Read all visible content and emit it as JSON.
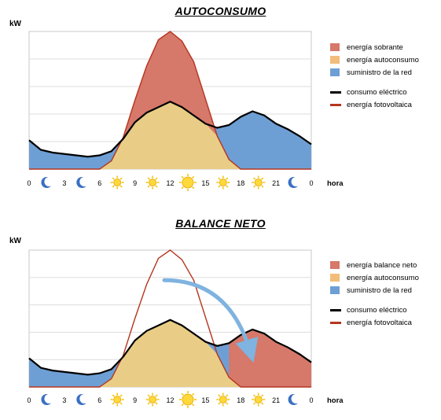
{
  "chart_data": [
    {
      "type": "area",
      "title": "AUTOCONSUMO",
      "ylabel": "kW",
      "xlabel": "hora",
      "x_ticks": [
        "0",
        "3",
        "6",
        "9",
        "12",
        "15",
        "18",
        "21",
        "0"
      ],
      "tick_icons": [
        "moon-icon",
        "moon-icon",
        "sun-icon",
        "sun-icon",
        "sun-icon",
        "sun-icon",
        "sun-icon",
        "moon-icon"
      ],
      "x": [
        0,
        1,
        2,
        3,
        4,
        5,
        6,
        7,
        8,
        9,
        10,
        11,
        12,
        13,
        14,
        15,
        16,
        17,
        18,
        19,
        20,
        21,
        22,
        23,
        24
      ],
      "ylim": [
        0,
        10
      ],
      "grid": true,
      "series": [
        {
          "name": "consumo eléctrico",
          "style": "line",
          "color": "#000000",
          "values": [
            2.1,
            1.4,
            1.2,
            1.1,
            1.0,
            0.9,
            1.0,
            1.3,
            2.2,
            3.4,
            4.1,
            4.5,
            4.9,
            4.5,
            3.9,
            3.3,
            3.0,
            3.2,
            3.8,
            4.2,
            3.9,
            3.3,
            2.9,
            2.4,
            1.8
          ]
        },
        {
          "name": "energía fotovoltaica",
          "style": "line",
          "color": "#b5351f",
          "values": [
            0,
            0,
            0,
            0,
            0,
            0,
            0,
            0.6,
            2.3,
            5.0,
            7.5,
            9.4,
            10.0,
            9.3,
            7.8,
            5.1,
            2.4,
            0.7,
            0,
            0,
            0,
            0,
            0,
            0,
            0
          ]
        }
      ],
      "areas": [
        {
          "name": "energía sobrante",
          "color": "#d6786a"
        },
        {
          "name": "energía autoconsumo",
          "color": "#f2bd7a"
        },
        {
          "name": "suministro de la red",
          "color": "#6e9fd4"
        }
      ],
      "legend_position": "right"
    },
    {
      "type": "area",
      "title": "BALANCE NETO",
      "ylabel": "kW",
      "xlabel": "hora",
      "x_ticks": [
        "0",
        "3",
        "6",
        "9",
        "12",
        "15",
        "18",
        "21",
        "0"
      ],
      "tick_icons": [
        "moon-icon",
        "moon-icon",
        "sun-icon",
        "sun-icon",
        "sun-icon",
        "sun-icon",
        "sun-icon",
        "moon-icon"
      ],
      "x": [
        0,
        1,
        2,
        3,
        4,
        5,
        6,
        7,
        8,
        9,
        10,
        11,
        12,
        13,
        14,
        15,
        16,
        17,
        18,
        19,
        20,
        21,
        22,
        23,
        24
      ],
      "ylim": [
        0,
        10
      ],
      "grid": true,
      "series": [
        {
          "name": "consumo eléctrico",
          "style": "line",
          "color": "#000000",
          "values": [
            2.1,
            1.4,
            1.2,
            1.1,
            1.0,
            0.9,
            1.0,
            1.3,
            2.2,
            3.4,
            4.1,
            4.5,
            4.9,
            4.5,
            3.9,
            3.3,
            3.0,
            3.2,
            3.8,
            4.2,
            3.9,
            3.3,
            2.9,
            2.4,
            1.8
          ]
        },
        {
          "name": "energía fotovoltaica",
          "style": "line",
          "color": "#b5351f",
          "values": [
            0,
            0,
            0,
            0,
            0,
            0,
            0,
            0.6,
            2.3,
            5.0,
            7.5,
            9.4,
            10.0,
            9.3,
            7.8,
            5.1,
            2.4,
            0.7,
            0,
            0,
            0,
            0,
            0,
            0,
            0
          ]
        }
      ],
      "areas": [
        {
          "name": "energía balance neto",
          "color": "#d6786a"
        },
        {
          "name": "energía autoconsumo",
          "color": "#f2bd7a"
        },
        {
          "name": "suministro de la red",
          "color": "#6e9fd4"
        }
      ],
      "annotation": "arrow from midday surplus to evening consumption",
      "legend_position": "right"
    }
  ]
}
